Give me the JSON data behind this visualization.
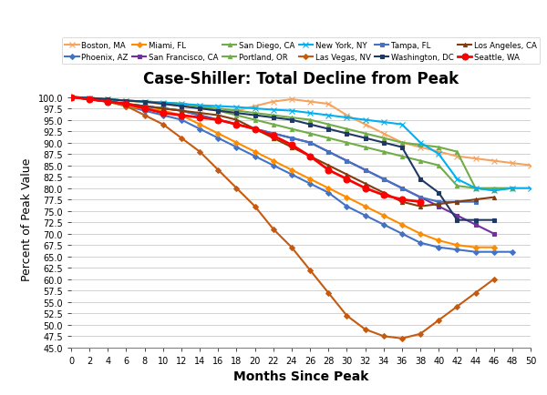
{
  "title": "Case-Shiller: Total Decline from Peak",
  "xlabel": "Months Since Peak",
  "ylabel": "Percent of Peak Value",
  "ylim": [
    45.0,
    101.5
  ],
  "xlim": [
    0,
    50
  ],
  "yticks": [
    45.0,
    47.5,
    50.0,
    52.5,
    55.0,
    57.5,
    60.0,
    62.5,
    65.0,
    67.5,
    70.0,
    72.5,
    75.0,
    77.5,
    80.0,
    82.5,
    85.0,
    87.5,
    90.0,
    92.5,
    95.0,
    97.5,
    100.0
  ],
  "xticks": [
    0,
    2,
    4,
    6,
    8,
    10,
    12,
    14,
    16,
    18,
    20,
    22,
    24,
    26,
    28,
    30,
    32,
    34,
    36,
    38,
    40,
    42,
    44,
    46,
    48,
    50
  ],
  "legend_row1": [
    "Boston, MA",
    "Phoenix, AZ",
    "Miami, FL",
    "San Francisco, CA",
    "San Diego, CA",
    "Portland, OR"
  ],
  "legend_row2": [
    "New York, NY",
    "Las Vegas, NV",
    "Tampa, FL",
    "Washington, DC",
    "Los Angeles, CA",
    "Seattle, WA"
  ],
  "series": [
    {
      "name": "Boston, MA",
      "color": "#F4A460",
      "marker": "x",
      "markersize": 4,
      "linewidth": 1.5,
      "x": [
        0,
        2,
        4,
        6,
        8,
        10,
        12,
        14,
        16,
        18,
        20,
        22,
        24,
        26,
        28,
        30,
        32,
        34,
        36,
        38,
        40,
        42,
        44,
        46,
        48,
        50
      ],
      "y": [
        100,
        99.8,
        99.5,
        99.2,
        98.8,
        98.5,
        98,
        97.5,
        97,
        97,
        98,
        99,
        99.5,
        99,
        98.5,
        96,
        94,
        92,
        90,
        89,
        88,
        87,
        86.5,
        86,
        85.5,
        85
      ]
    },
    {
      "name": "Phoenix, AZ",
      "color": "#4472C4",
      "marker": "D",
      "markersize": 3,
      "linewidth": 1.5,
      "x": [
        0,
        2,
        4,
        6,
        8,
        10,
        12,
        14,
        16,
        18,
        20,
        22,
        24,
        26,
        28,
        30,
        32,
        34,
        36,
        38,
        40,
        42,
        44,
        46,
        48
      ],
      "y": [
        100,
        99.5,
        99,
        98,
        97,
        96,
        95,
        93,
        91,
        89,
        87,
        85,
        83,
        81,
        79,
        76,
        74,
        72,
        70,
        68,
        67,
        66.5,
        66,
        66,
        66
      ]
    },
    {
      "name": "Miami, FL",
      "color": "#FF8C00",
      "marker": "D",
      "markersize": 3,
      "linewidth": 1.5,
      "x": [
        0,
        2,
        4,
        6,
        8,
        10,
        12,
        14,
        16,
        18,
        20,
        22,
        24,
        26,
        28,
        30,
        32,
        34,
        36,
        38,
        40,
        42,
        44,
        46
      ],
      "y": [
        100,
        99.5,
        99,
        98,
        97.5,
        97,
        96,
        94,
        92,
        90,
        88,
        86,
        84,
        82,
        80,
        78,
        76,
        74,
        72,
        70,
        68.5,
        67.5,
        67,
        67
      ]
    },
    {
      "name": "San Francisco, CA",
      "color": "#7030A0",
      "marker": "s",
      "markersize": 3,
      "linewidth": 1.5,
      "x": [
        0,
        2,
        4,
        6,
        8,
        10,
        12,
        14,
        16,
        18,
        20,
        22,
        24,
        26,
        28,
        30,
        32,
        34,
        36,
        38,
        40,
        42,
        44,
        46
      ],
      "y": [
        100,
        99.5,
        99,
        98.5,
        98,
        97.5,
        97,
        96,
        95,
        94,
        93,
        92,
        91,
        90,
        88,
        86,
        84,
        82,
        80,
        78,
        76,
        74,
        72,
        70
      ]
    },
    {
      "name": "San Diego, CA",
      "color": "#70AD47",
      "marker": "^",
      "markersize": 3,
      "linewidth": 1.5,
      "x": [
        0,
        2,
        4,
        6,
        8,
        10,
        12,
        14,
        16,
        18,
        20,
        22,
        24,
        26,
        28,
        30,
        32,
        34,
        36,
        38,
        40,
        42,
        44,
        46,
        48
      ],
      "y": [
        100,
        99.8,
        99.5,
        99.2,
        99,
        98.8,
        98.5,
        98,
        97.5,
        97,
        96.5,
        96,
        95.5,
        95,
        94,
        93,
        92,
        91,
        90,
        89.5,
        89,
        88,
        80,
        80,
        80
      ]
    },
    {
      "name": "Portland, OR",
      "color": "#70AD47",
      "marker": "^",
      "markersize": 3,
      "linewidth": 1.5,
      "x": [
        0,
        2,
        4,
        6,
        8,
        10,
        12,
        14,
        16,
        18,
        20,
        22,
        24,
        26,
        28,
        30,
        32,
        34,
        36,
        38,
        40,
        42,
        44,
        46,
        48
      ],
      "y": [
        100,
        99.8,
        99.5,
        99.2,
        99,
        98.8,
        98.5,
        98,
        97,
        96,
        95,
        94,
        93,
        92,
        91,
        90,
        89,
        88,
        87,
        86,
        85,
        80.5,
        80,
        79.5,
        80
      ]
    },
    {
      "name": "New York, NY",
      "color": "#00B0F0",
      "marker": "x",
      "markersize": 4,
      "linewidth": 1.5,
      "x": [
        0,
        2,
        4,
        6,
        8,
        10,
        12,
        14,
        16,
        18,
        20,
        22,
        24,
        26,
        28,
        30,
        32,
        34,
        36,
        38,
        40,
        42,
        44,
        46,
        48,
        50
      ],
      "y": [
        100,
        99.8,
        99.5,
        99.2,
        99,
        98.8,
        98.5,
        98.2,
        98,
        97.8,
        97.5,
        97.2,
        97,
        96.5,
        96,
        95.5,
        95,
        94.5,
        94,
        90,
        87.5,
        82,
        80,
        79.5,
        80,
        80
      ]
    },
    {
      "name": "Las Vegas, NV",
      "color": "#C55A11",
      "marker": "D",
      "markersize": 3,
      "linewidth": 1.5,
      "x": [
        0,
        2,
        4,
        6,
        8,
        10,
        12,
        14,
        16,
        18,
        20,
        22,
        24,
        26,
        28,
        30,
        32,
        34,
        36,
        38,
        40,
        42,
        44,
        46
      ],
      "y": [
        100,
        99.5,
        99,
        98,
        96,
        94,
        91,
        88,
        84,
        80,
        76,
        71,
        67,
        62,
        57,
        52,
        49,
        47.5,
        47,
        48,
        51,
        54,
        57,
        60
      ]
    },
    {
      "name": "Tampa, FL",
      "color": "#4472C4",
      "marker": "s",
      "markersize": 3,
      "linewidth": 1.5,
      "x": [
        0,
        2,
        4,
        6,
        8,
        10,
        12,
        14,
        16,
        18,
        20,
        22,
        24,
        26,
        28,
        30,
        32,
        34,
        36,
        38,
        40,
        42,
        44
      ],
      "y": [
        100,
        99.5,
        99,
        98.5,
        98,
        97.5,
        97,
        96,
        95,
        94,
        93,
        92,
        91,
        90,
        88,
        86,
        84,
        82,
        80,
        78,
        77,
        77,
        77
      ]
    },
    {
      "name": "Washington, DC",
      "color": "#203864",
      "marker": "s",
      "markersize": 3,
      "linewidth": 1.5,
      "x": [
        0,
        2,
        4,
        6,
        8,
        10,
        12,
        14,
        16,
        18,
        20,
        22,
        24,
        26,
        28,
        30,
        32,
        34,
        36,
        38,
        40,
        42,
        44,
        46
      ],
      "y": [
        100,
        99.8,
        99.5,
        99.2,
        99,
        98.5,
        98,
        97.5,
        97,
        96.5,
        96,
        95.5,
        95,
        94,
        93,
        92,
        91,
        90,
        89,
        82,
        79,
        73,
        73,
        73
      ]
    },
    {
      "name": "Los Angeles, CA",
      "color": "#843C0C",
      "marker": "^",
      "markersize": 3,
      "linewidth": 1.5,
      "x": [
        0,
        2,
        4,
        6,
        8,
        10,
        12,
        14,
        16,
        18,
        20,
        22,
        24,
        26,
        28,
        30,
        32,
        34,
        36,
        38,
        40,
        42,
        44,
        46
      ],
      "y": [
        100,
        99.5,
        99,
        98.5,
        98,
        97.5,
        97,
        96.5,
        96,
        95,
        93,
        91,
        89,
        87,
        85,
        83,
        81,
        79,
        77,
        76,
        76.5,
        77,
        77.5,
        78
      ]
    },
    {
      "name": "Seattle, WA",
      "color": "#FF0000",
      "marker": "o",
      "markersize": 5,
      "linewidth": 2.0,
      "x": [
        0,
        2,
        4,
        6,
        8,
        10,
        12,
        14,
        16,
        18,
        20,
        22,
        24,
        26,
        28,
        30,
        32,
        34,
        36,
        38
      ],
      "y": [
        100,
        99.5,
        99,
        98.5,
        97.5,
        96.5,
        96,
        95.5,
        95,
        94,
        93,
        91.5,
        89.5,
        87,
        84,
        82,
        80,
        78.5,
        77.5,
        77
      ]
    }
  ]
}
